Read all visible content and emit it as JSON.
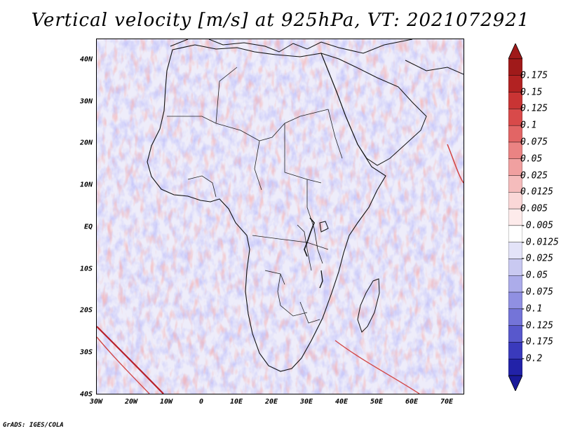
{
  "title": "Vertical velocity [m/s] at 925hPa, VT: 2021072921",
  "credit": "GrADS: IGES/COLA",
  "map": {
    "lon_range": [
      -30,
      75
    ],
    "lat_range": [
      -40,
      45
    ],
    "lat_ticks": [
      {
        "value": 40,
        "label": "40N"
      },
      {
        "value": 30,
        "label": "30N"
      },
      {
        "value": 20,
        "label": "20N"
      },
      {
        "value": 10,
        "label": "10N"
      },
      {
        "value": 0,
        "label": "EQ"
      },
      {
        "value": -10,
        "label": "10S"
      },
      {
        "value": -20,
        "label": "20S"
      },
      {
        "value": -30,
        "label": "30S"
      },
      {
        "value": -40,
        "label": "40S"
      }
    ],
    "lon_ticks": [
      {
        "value": -30,
        "label": "30W"
      },
      {
        "value": -20,
        "label": "20W"
      },
      {
        "value": -10,
        "label": "10W"
      },
      {
        "value": 0,
        "label": "0"
      },
      {
        "value": 10,
        "label": "10E"
      },
      {
        "value": 20,
        "label": "20E"
      },
      {
        "value": 30,
        "label": "30E"
      },
      {
        "value": 40,
        "label": "40E"
      },
      {
        "value": 50,
        "label": "50E"
      },
      {
        "value": 60,
        "label": "60E"
      },
      {
        "value": 70,
        "label": "70E"
      }
    ]
  },
  "colorbar": {
    "levels": [
      {
        "label": "0.175",
        "color": "#b22222"
      },
      {
        "label": "0.15",
        "color": "#c93434"
      },
      {
        "label": "0.125",
        "color": "#d84a4a"
      },
      {
        "label": "0.1",
        "color": "#e26565"
      },
      {
        "label": "0.075",
        "color": "#ea8383"
      },
      {
        "label": "0.05",
        "color": "#f0a0a0"
      },
      {
        "label": "0.025",
        "color": "#f5bcbc"
      },
      {
        "label": "0.0125",
        "color": "#fad7d7"
      },
      {
        "label": "0.005",
        "color": "#fdebeb"
      },
      {
        "label": "-0.005",
        "color": "#ffffff"
      },
      {
        "label": "-0.0125",
        "color": "#e3e3f8"
      },
      {
        "label": "-0.025",
        "color": "#c9c9f1"
      },
      {
        "label": "-0.05",
        "color": "#acacea"
      },
      {
        "label": "-0.075",
        "color": "#9090e2"
      },
      {
        "label": "-0.1",
        "color": "#7474d8"
      },
      {
        "label": "-0.125",
        "color": "#5858cc"
      },
      {
        "label": "-0.175",
        "color": "#3a3abc"
      },
      {
        "label": "-0.2",
        "color": "#2222a8"
      }
    ],
    "top_color": "#a01a1a",
    "bottom_color": "#1a1a9a"
  }
}
